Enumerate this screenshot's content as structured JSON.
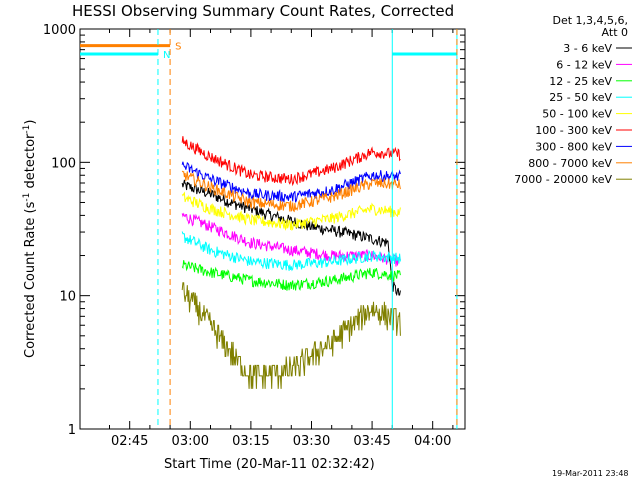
{
  "chart_data": {
    "type": "line",
    "title": "HESSI Observing Summary Count Rates, Corrected",
    "xlabel": "Start Time (20-Mar-11 02:32:42)",
    "ylabel_main": "Corrected Count Rate (s",
    "ylabel_sup1": "-1",
    "ylabel_mid": " detector",
    "ylabel_sup2": "-1",
    "ylabel_end": ")",
    "y_scale": "log",
    "ylim": [
      1,
      1000
    ],
    "xlim": [
      "02:32:42",
      "04:08:00"
    ],
    "x_ticks": [
      "02:45",
      "03:00",
      "03:15",
      "03:30",
      "03:45",
      "04:00"
    ],
    "y_ticks": [
      "1",
      "10",
      "100",
      "1000"
    ],
    "grid": false,
    "legend_position": "right",
    "legend_header": [
      "Det 1,3,4,5,6,",
      "Att 0"
    ],
    "timestamp": "19-Mar-2011 23:48",
    "annotations": [
      {
        "label": "S",
        "x": "02:55",
        "color": "#ff8000"
      },
      {
        "label": "N",
        "x": "02:52",
        "color": "#00ffff"
      }
    ],
    "flag_lines": [
      {
        "name": "SAA flag",
        "color": "#ff8000",
        "value": 750,
        "spans": [
          [
            "02:32:42",
            "02:55"
          ]
        ]
      },
      {
        "name": "Night flag",
        "color": "#00ffff",
        "value": 650,
        "spans": [
          [
            "02:32:42",
            "02:52"
          ],
          [
            "03:50",
            "04:06"
          ]
        ]
      }
    ],
    "vertical_lines": [
      {
        "x": "02:52",
        "color": "#00ffff",
        "dashed": true
      },
      {
        "x": "02:55",
        "color": "#ff8000",
        "dashed": true
      },
      {
        "x": "03:50",
        "color": "#00ffff",
        "dashed": false
      },
      {
        "x": "04:06",
        "color": "#00ffff",
        "dashed": false
      },
      {
        "x": "04:06",
        "color": "#ff8000",
        "dashed": true
      }
    ],
    "series": [
      {
        "name": "3 - 6 keV",
        "color": "#000000",
        "x": [
          "02:58",
          "03:05",
          "03:10",
          "03:20",
          "03:30",
          "03:40",
          "03:49",
          "03:50",
          "03:52"
        ],
        "values": [
          68,
          58,
          50,
          40,
          33,
          29,
          25,
          12,
          10
        ]
      },
      {
        "name": "6 - 12 keV",
        "color": "#ff00ff",
        "x": [
          "02:58",
          "03:05",
          "03:15",
          "03:25",
          "03:35",
          "03:45",
          "03:52"
        ],
        "values": [
          40,
          33,
          25,
          22,
          20,
          20,
          18
        ]
      },
      {
        "name": "12 - 25 keV",
        "color": "#00ff00",
        "x": [
          "02:58",
          "03:05",
          "03:15",
          "03:25",
          "03:35",
          "03:45",
          "03:52"
        ],
        "values": [
          17,
          15,
          13,
          12,
          13,
          15,
          14
        ]
      },
      {
        "name": "25 - 50 keV",
        "color": "#00ffff",
        "x": [
          "02:58",
          "03:05",
          "03:15",
          "03:25",
          "03:35",
          "03:45",
          "03:52"
        ],
        "values": [
          28,
          22,
          18,
          17,
          18,
          20,
          19
        ]
      },
      {
        "name": "50 - 100 keV",
        "color": "#ffff00",
        "x": [
          "02:58",
          "03:05",
          "03:15",
          "03:25",
          "03:35",
          "03:45",
          "03:52"
        ],
        "values": [
          55,
          45,
          37,
          34,
          38,
          45,
          42
        ]
      },
      {
        "name": "100 - 300 keV",
        "color": "#ff0000",
        "x": [
          "02:58",
          "03:05",
          "03:15",
          "03:25",
          "03:35",
          "03:45",
          "03:52"
        ],
        "values": [
          145,
          110,
          80,
          75,
          90,
          120,
          115
        ]
      },
      {
        "name": "300 - 800 keV",
        "color": "#0000ff",
        "x": [
          "02:58",
          "03:05",
          "03:15",
          "03:25",
          "03:35",
          "03:45",
          "03:52"
        ],
        "values": [
          95,
          75,
          58,
          55,
          62,
          80,
          78
        ]
      },
      {
        "name": "800 - 7000 keV",
        "color": "#ff8000",
        "x": [
          "02:58",
          "03:05",
          "03:15",
          "03:25",
          "03:35",
          "03:45",
          "03:52"
        ],
        "values": [
          82,
          65,
          50,
          47,
          55,
          70,
          68
        ]
      },
      {
        "name": "7000 - 20000 keV",
        "color": "#808000",
        "x": [
          "02:58",
          "03:02",
          "03:08",
          "03:15",
          "03:25",
          "03:35",
          "03:45",
          "03:52"
        ],
        "values": [
          11,
          8,
          4.5,
          2.5,
          2.8,
          4.5,
          8,
          6.5
        ]
      }
    ]
  }
}
